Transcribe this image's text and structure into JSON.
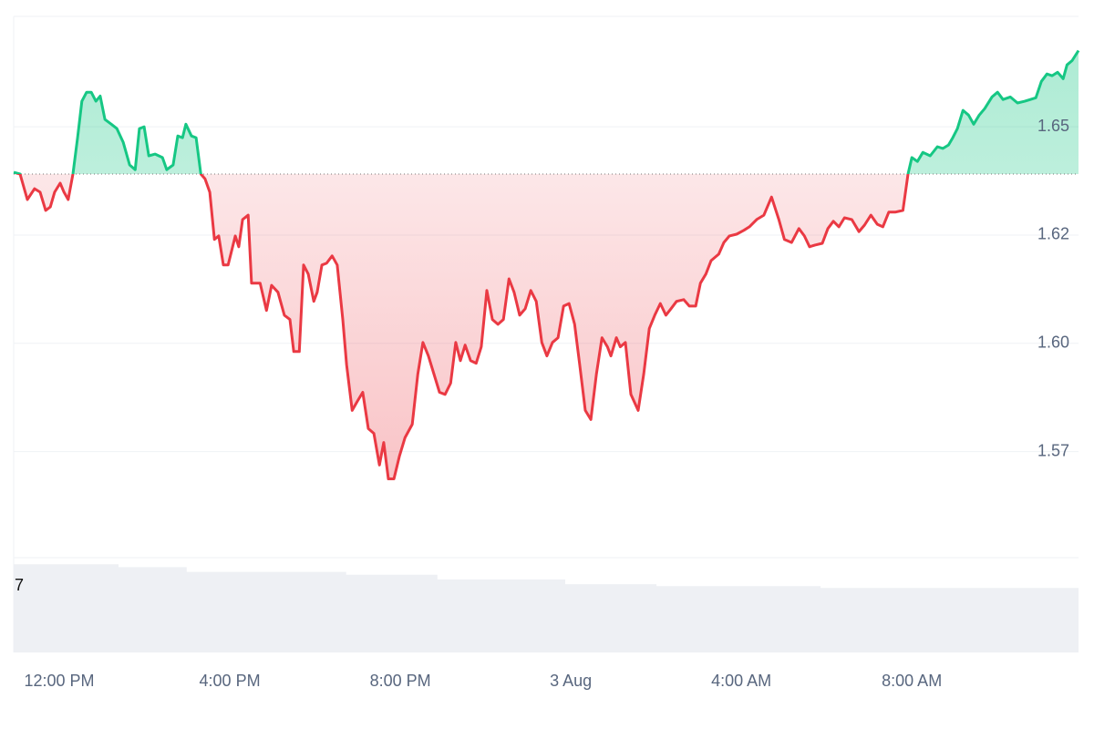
{
  "chart_data": {
    "type": "line",
    "x": [
      -1.07,
      -0.92,
      -0.75,
      -0.58,
      -0.45,
      -0.32,
      -0.21,
      -0.11,
      0.02,
      0.11,
      0.21,
      0.32,
      0.43,
      0.53,
      0.64,
      0.75,
      0.86,
      0.96,
      1.07,
      1.22,
      1.35,
      1.5,
      1.65,
      1.78,
      1.88,
      1.99,
      2.1,
      2.25,
      2.42,
      2.52,
      2.67,
      2.78,
      2.89,
      2.97,
      3.1,
      3.21,
      3.32,
      3.42,
      3.53,
      3.64,
      3.74,
      3.85,
      3.96,
      4.13,
      4.21,
      4.3,
      4.43,
      4.51,
      4.71,
      4.86,
      4.98,
      5.13,
      5.28,
      5.41,
      5.5,
      5.63,
      5.73,
      5.84,
      5.97,
      6.05,
      6.16,
      6.27,
      6.4,
      6.52,
      6.65,
      6.74,
      6.87,
      6.99,
      7.12,
      7.25,
      7.38,
      7.51,
      7.61,
      7.72,
      7.85,
      7.98,
      8.11,
      8.28,
      8.41,
      8.53,
      8.66,
      8.79,
      8.92,
      9.05,
      9.18,
      9.3,
      9.41,
      9.52,
      9.65,
      9.78,
      9.9,
      10.03,
      10.16,
      10.29,
      10.42,
      10.55,
      10.67,
      10.8,
      10.93,
      11.06,
      11.19,
      11.32,
      11.44,
      11.57,
      11.7,
      11.83,
      11.96,
      12.09,
      12.21,
      12.34,
      12.47,
      12.6,
      12.73,
      12.86,
      12.94,
      13.07,
      13.16,
      13.28,
      13.41,
      13.58,
      13.71,
      13.84,
      13.97,
      14.1,
      14.23,
      14.35,
      14.48,
      14.65,
      14.78,
      14.93,
      15.04,
      15.17,
      15.29,
      15.47,
      15.59,
      15.72,
      15.89,
      16.06,
      16.19,
      16.36,
      16.53,
      16.71,
      16.88,
      17.01,
      17.18,
      17.35,
      17.48,
      17.6,
      17.73,
      17.9,
      18.03,
      18.16,
      18.29,
      18.42,
      18.59,
      18.76,
      18.89,
      19.04,
      19.19,
      19.32,
      19.46,
      19.61,
      19.79,
      19.91,
      20.0,
      20.13,
      20.26,
      20.43,
      20.6,
      20.73,
      20.86,
      20.96,
      21.07,
      21.2,
      21.33,
      21.45,
      21.58,
      21.71,
      21.88,
      22.01,
      22.14,
      22.31,
      22.48,
      22.65,
      22.78,
      22.91,
      23.04,
      23.17,
      23.29,
      23.42,
      23.55,
      23.64,
      23.76,
      23.91
    ],
    "values": [
      1.637,
      1.6366,
      1.6307,
      1.6332,
      1.6324,
      1.6282,
      1.629,
      1.6324,
      1.6345,
      1.6324,
      1.6307,
      1.6366,
      1.645,
      1.6534,
      1.6555,
      1.6555,
      1.6534,
      1.6546,
      1.6492,
      1.6481,
      1.6471,
      1.6439,
      1.6387,
      1.6376,
      1.6471,
      1.6475,
      1.6408,
      1.6412,
      1.6404,
      1.6376,
      1.6387,
      1.6454,
      1.645,
      1.6481,
      1.6454,
      1.645,
      1.6366,
      1.6355,
      1.6324,
      1.6215,
      1.6223,
      1.6156,
      1.6156,
      1.6223,
      1.6198,
      1.6261,
      1.6271,
      1.6114,
      1.6114,
      1.6051,
      1.6109,
      1.6093,
      1.604,
      1.603,
      1.5956,
      1.5956,
      1.6156,
      1.6135,
      1.6072,
      1.6093,
      1.6156,
      1.616,
      1.6177,
      1.6156,
      1.603,
      1.5925,
      1.582,
      1.5841,
      1.5862,
      1.5778,
      1.5767,
      1.5694,
      1.5746,
      1.5662,
      1.5662,
      1.5715,
      1.5757,
      1.5788,
      1.5904,
      1.5977,
      1.5946,
      1.5904,
      1.5862,
      1.5857,
      1.5883,
      1.5977,
      1.5935,
      1.5971,
      1.5935,
      1.5929,
      1.5967,
      1.6097,
      1.603,
      1.6019,
      1.603,
      1.6124,
      1.6093,
      1.604,
      1.6055,
      1.6097,
      1.6072,
      1.5977,
      1.5946,
      1.5977,
      1.5988,
      1.6061,
      1.6067,
      1.6019,
      1.5925,
      1.582,
      1.5799,
      1.5904,
      1.5988,
      1.5967,
      1.5946,
      1.5988,
      1.5967,
      1.5977,
      1.5857,
      1.582,
      1.5904,
      1.6009,
      1.604,
      1.6067,
      1.604,
      1.6055,
      1.6072,
      1.6076,
      1.6061,
      1.6061,
      1.6114,
      1.6135,
      1.6166,
      1.6181,
      1.6208,
      1.6223,
      1.6227,
      1.6236,
      1.6244,
      1.6261,
      1.6271,
      1.6313,
      1.6261,
      1.6215,
      1.6208,
      1.624,
      1.6223,
      1.6198,
      1.6202,
      1.6206,
      1.624,
      1.6257,
      1.6244,
      1.6265,
      1.6261,
      1.6233,
      1.6248,
      1.6271,
      1.625,
      1.6244,
      1.6278,
      1.6278,
      1.6282,
      1.6366,
      1.6404,
      1.6395,
      1.6416,
      1.6408,
      1.6429,
      1.6425,
      1.6433,
      1.645,
      1.6471,
      1.6513,
      1.6502,
      1.6481,
      1.6502,
      1.6517,
      1.6544,
      1.6555,
      1.6538,
      1.6544,
      1.653,
      1.6534,
      1.6538,
      1.6542,
      1.658,
      1.6597,
      1.6593,
      1.6601,
      1.6586,
      1.6618,
      1.6628,
      1.6651
    ],
    "baseline": 1.6366,
    "up_color": "#16c784",
    "down_color": "#ea3943",
    "xlim": [
      -1.07,
      23.91
    ],
    "xticks": [
      {
        "value": 0,
        "label": "12:00 PM"
      },
      {
        "value": 4,
        "label": "4:00 PM"
      },
      {
        "value": 8,
        "label": "8:00 PM"
      },
      {
        "value": 12,
        "label": "3 Aug"
      },
      {
        "value": 16,
        "label": "4:00 AM"
      },
      {
        "value": 20,
        "label": "8:00 AM"
      }
    ],
    "ylim": [
      1.548,
      1.673
    ],
    "yticks": [
      {
        "value": 1.5725,
        "label": "1.57"
      },
      {
        "value": 1.5975,
        "label": "1.60"
      },
      {
        "value": 1.6225,
        "label": "1.62"
      },
      {
        "value": 1.6475,
        "label": "1.65"
      }
    ],
    "grid": true,
    "volume": {
      "color": "#eef0f4",
      "x": [
        -1.07,
        1.39,
        2.99,
        6.73,
        8.87,
        11.87,
        14.01,
        17.86,
        23.91
      ],
      "values": [
        9.3,
        9.0,
        8.5,
        8.2,
        7.7,
        7.2,
        7.0,
        6.8,
        6.8
      ],
      "ylim": [
        0,
        10
      ],
      "yticks": [
        7
      ]
    }
  }
}
